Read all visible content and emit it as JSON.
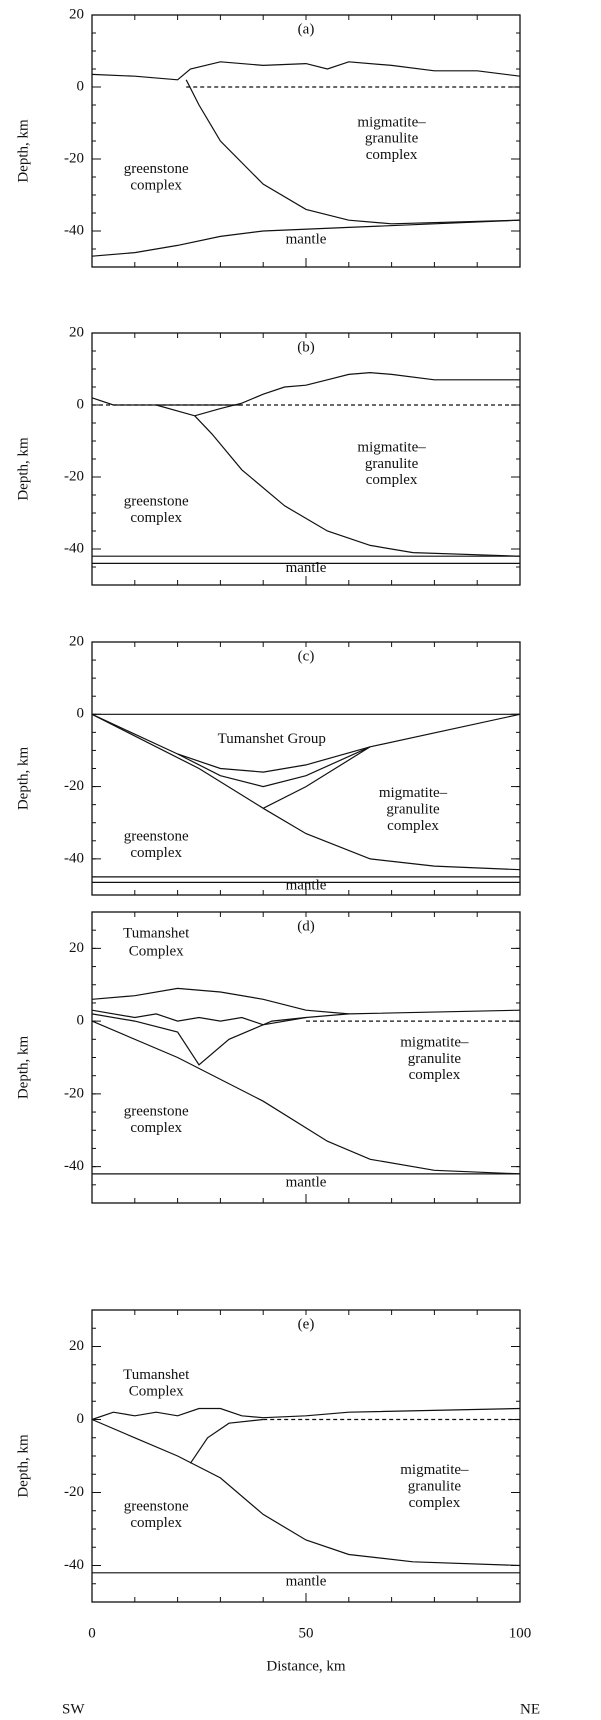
{
  "chart_data": [
    {
      "type": "line",
      "label": "(a)",
      "ylabel": "Depth, km",
      "xlim": [
        0,
        100
      ],
      "ylim": [
        -50,
        20
      ],
      "xticks": [
        0,
        50,
        100
      ],
      "yticks": [
        20,
        0,
        -20,
        -40
      ],
      "color": "#111",
      "annotations": [
        "migmatite–",
        "granulite",
        "complex",
        "greenstone",
        "complex",
        "mantle"
      ],
      "series": [
        {
          "x": [
            0,
            10,
            20,
            23,
            30,
            40,
            50,
            55,
            60,
            70,
            80,
            90,
            100
          ],
          "values": [
            3.5,
            3,
            2,
            5,
            7,
            6,
            6.5,
            5,
            7,
            6,
            4.5,
            4.5,
            3
          ]
        },
        {
          "style": "dashed",
          "x": [
            22,
            100
          ],
          "values": [
            0,
            0
          ]
        },
        {
          "x": [
            22,
            25,
            30,
            40,
            50,
            60,
            70,
            100
          ],
          "values": [
            2,
            -5,
            -15,
            -27,
            -34,
            -37,
            -38,
            -37
          ]
        },
        {
          "x": [
            0,
            10,
            20,
            30,
            40,
            60,
            80,
            100
          ],
          "values": [
            -47,
            -46,
            -44,
            -41.5,
            -40,
            -39,
            -38,
            -37
          ]
        }
      ]
    },
    {
      "type": "line",
      "label": "(b)",
      "ylabel": "Depth, km",
      "xlim": [
        0,
        100
      ],
      "ylim": [
        -50,
        20
      ],
      "xticks": [
        0,
        50,
        100
      ],
      "yticks": [
        20,
        0,
        -20,
        -40
      ],
      "color": "#111",
      "annotations": [
        "migmatite–",
        "granulite",
        "complex",
        "greenstone",
        "complex",
        "mantle"
      ],
      "series": [
        {
          "x": [
            0,
            5,
            15,
            24,
            30,
            35,
            40,
            45,
            50,
            55,
            60,
            65,
            70,
            80,
            100
          ],
          "values": [
            2,
            0,
            0,
            -3,
            -1,
            0.5,
            3,
            5,
            5.5,
            7,
            8.5,
            9,
            8.5,
            7,
            7
          ]
        },
        {
          "style": "dashed",
          "x": [
            0,
            100
          ],
          "values": [
            0,
            0
          ]
        },
        {
          "x": [
            15,
            35
          ],
          "values": [
            0,
            0
          ]
        },
        {
          "x": [
            24,
            28,
            35,
            45,
            55,
            65,
            75,
            100
          ],
          "values": [
            -3,
            -8,
            -18,
            -28,
            -35,
            -39,
            -41,
            -42
          ]
        },
        {
          "x": [
            0,
            100
          ],
          "values": [
            -42,
            -42
          ]
        },
        {
          "x": [
            0,
            100
          ],
          "values": [
            -44,
            -44
          ]
        }
      ]
    },
    {
      "type": "line",
      "label": "(c)",
      "ylabel": "Depth, km",
      "xlim": [
        0,
        100
      ],
      "ylim": [
        -50,
        20
      ],
      "xticks": [
        0,
        50,
        100
      ],
      "yticks": [
        20,
        0,
        -20,
        -40
      ],
      "color": "#111",
      "annotations": [
        "Tumanshet Group",
        "migmatite–",
        "granulite",
        "complex",
        "greenstone",
        "complex",
        "mantle"
      ],
      "series": [
        {
          "x": [
            0,
            100
          ],
          "values": [
            0,
            0
          ]
        },
        {
          "x": [
            0,
            20,
            30,
            40,
            50,
            65,
            100
          ],
          "values": [
            0,
            -11,
            -15,
            -16,
            -14,
            -9,
            0
          ]
        },
        {
          "x": [
            20,
            30,
            40,
            50,
            65
          ],
          "values": [
            -11,
            -17,
            -20,
            -17,
            -9
          ]
        },
        {
          "x": [
            0,
            25,
            40,
            50,
            65
          ],
          "values": [
            0,
            -15,
            -26,
            -20,
            -9
          ]
        },
        {
          "x": [
            40,
            50,
            65,
            80,
            100
          ],
          "values": [
            -26,
            -33,
            -40,
            -42,
            -43
          ]
        },
        {
          "x": [
            0,
            100
          ],
          "values": [
            -45,
            -45
          ]
        },
        {
          "x": [
            0,
            100
          ],
          "values": [
            -46.5,
            -46.5
          ]
        }
      ]
    },
    {
      "type": "line",
      "label": "(d)",
      "ylabel": "Depth, km",
      "xlim": [
        0,
        100
      ],
      "ylim": [
        -50,
        30
      ],
      "xticks": [
        0,
        50,
        100
      ],
      "yticks": [
        20,
        0,
        -20,
        -40
      ],
      "color": "#111",
      "annotations": [
        "Tumanshet",
        "Complex",
        "migmatite–",
        "granulite",
        "complex",
        "greenstone",
        "complex",
        "mantle"
      ],
      "series": [
        {
          "x": [
            0,
            10,
            20,
            30,
            40,
            50,
            60,
            100
          ],
          "values": [
            6,
            7,
            9,
            8,
            6,
            3,
            2,
            3
          ]
        },
        {
          "x": [
            0,
            10,
            15,
            20,
            25,
            30,
            35,
            40,
            50,
            60
          ],
          "values": [
            3,
            1,
            2,
            0,
            1,
            0,
            1,
            -1,
            1,
            2
          ]
        },
        {
          "x": [
            0,
            10,
            20,
            25,
            32,
            38,
            42,
            50
          ],
          "values": [
            2,
            0,
            -3,
            -12,
            -5,
            -2,
            0,
            1
          ]
        },
        {
          "x": [
            0,
            20,
            40,
            55,
            65,
            80,
            100
          ],
          "values": [
            0,
            -10,
            -22,
            -33,
            -38,
            -41,
            -42
          ]
        },
        {
          "x": [
            0,
            100
          ],
          "values": [
            -42,
            -42
          ]
        },
        {
          "style": "dashed",
          "x": [
            50,
            100
          ],
          "values": [
            0,
            0
          ]
        }
      ]
    },
    {
      "type": "line",
      "label": "(e)",
      "ylabel": "Depth, km",
      "xlabel": "Distance, km",
      "left_label": "SW",
      "right_label": "NE",
      "xlim": [
        0,
        100
      ],
      "ylim": [
        -50,
        30
      ],
      "xticks": [
        0,
        50,
        100
      ],
      "yticks": [
        20,
        0,
        -20,
        -40
      ],
      "color": "#111",
      "annotations": [
        "Tumanshet",
        "Complex",
        "migmatite–",
        "granulite",
        "complex",
        "greenstone",
        "complex",
        "mantle"
      ],
      "series": [
        {
          "x": [
            0,
            5,
            10,
            15,
            20,
            25,
            30,
            35,
            40,
            50,
            60,
            100
          ],
          "values": [
            0,
            2,
            1,
            2,
            1,
            3,
            3,
            1,
            0.5,
            1,
            2,
            3
          ]
        },
        {
          "x": [
            0,
            10,
            20,
            30,
            40,
            50,
            60,
            75,
            100
          ],
          "values": [
            0,
            -5,
            -10,
            -16,
            -26,
            -33,
            -37,
            -39,
            -40
          ]
        },
        {
          "x": [
            23,
            27,
            32,
            40
          ],
          "values": [
            -12,
            -5,
            -1,
            0
          ]
        },
        {
          "x": [
            0,
            100
          ],
          "values": [
            -42,
            -42
          ]
        },
        {
          "style": "dashed",
          "x": [
            40,
            100
          ],
          "values": [
            0,
            0
          ]
        }
      ]
    }
  ]
}
